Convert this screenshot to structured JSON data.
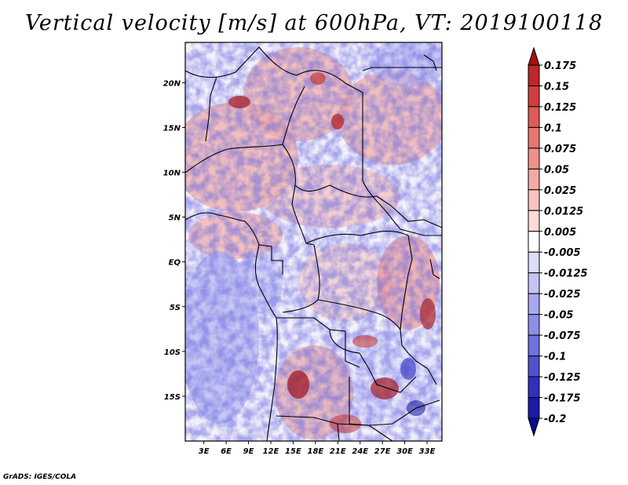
{
  "title": "Vertical velocity [m/s] at 600hPa, VT: 2019100118",
  "credit": "GrADS: IGES/COLA",
  "map": {
    "lat_labels": [
      "20N",
      "15N",
      "10N",
      "5N",
      "EQ",
      "5S",
      "10S",
      "15S"
    ],
    "lat_values": [
      20,
      15,
      10,
      5,
      0,
      -5,
      -10,
      -15
    ],
    "lon_labels": [
      "3E",
      "6E",
      "9E",
      "12E",
      "15E",
      "18E",
      "21E",
      "24E",
      "27E",
      "30E",
      "33E"
    ],
    "lon_values": [
      3,
      6,
      9,
      12,
      15,
      18,
      21,
      24,
      27,
      30,
      33
    ],
    "lon_range": [
      0.5,
      35
    ],
    "lat_range": [
      -20,
      24.5
    ]
  },
  "colorbar": {
    "labels": [
      "0.175",
      "0.15",
      "0.125",
      "0.1",
      "0.075",
      "0.05",
      "0.025",
      "0.0125",
      "0.005",
      "-0.005",
      "-0.0125",
      "-0.025",
      "-0.05",
      "-0.075",
      "-0.1",
      "-0.125",
      "-0.175",
      "-0.2"
    ],
    "colors": [
      "#a50f15",
      "#c0262a",
      "#d43c3c",
      "#e05a57",
      "#e87570",
      "#ef918b",
      "#f4aaa4",
      "#f8c4bf",
      "#fbdcd9",
      "#fefefe",
      "#dcdcfb",
      "#c4c4f6",
      "#a9a9f0",
      "#8e8eea",
      "#7070e0",
      "#5050d0",
      "#3030c0",
      "#1a1aa8",
      "#0a0a8a"
    ]
  }
}
